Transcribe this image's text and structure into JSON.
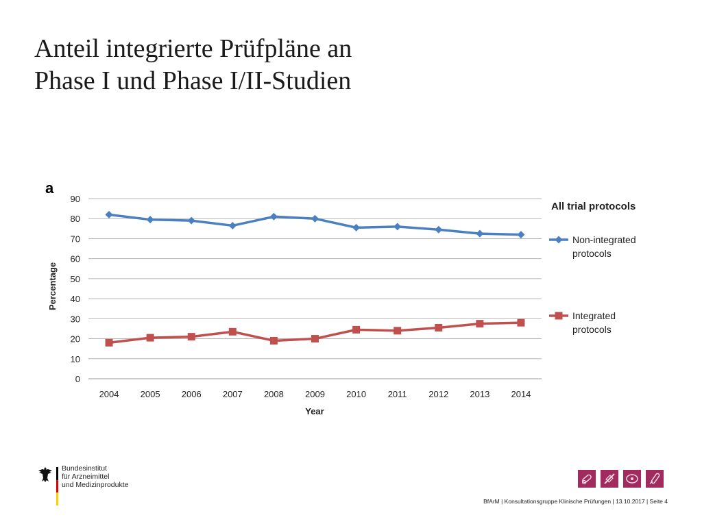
{
  "slide": {
    "title_line1": "Anteil integrierte Prüfpläne an",
    "title_line2": "Phase I und Phase I/II-Studien"
  },
  "chart_data": {
    "type": "line",
    "panel_label": "a",
    "legend_title": "All trial protocols",
    "xlabel": "Year",
    "ylabel": "Percentage",
    "ylim": [
      0,
      90
    ],
    "yticks": [
      0,
      10,
      20,
      30,
      40,
      50,
      60,
      70,
      80,
      90
    ],
    "grid": true,
    "legend_position": "right",
    "categories": [
      "2004",
      "2005",
      "2006",
      "2007",
      "2008",
      "2009",
      "2010",
      "2011",
      "2012",
      "2013",
      "2014"
    ],
    "series": [
      {
        "name_line1": "Non-integrated",
        "name_line2": "protocols",
        "color": "#4a7fc1",
        "marker": "diamond",
        "values": [
          82,
          79.5,
          79,
          76.5,
          81,
          80,
          75.5,
          76,
          74.5,
          72.5,
          72
        ]
      },
      {
        "name_line1": "Integrated",
        "name_line2": "protocols",
        "color": "#c0504d",
        "marker": "square",
        "values": [
          18,
          20.5,
          21,
          23.5,
          19,
          20,
          24.5,
          24,
          25.5,
          27.5,
          28
        ]
      }
    ]
  },
  "footer": {
    "institute_line1": "Bundesinstitut",
    "institute_line2": "für Arzneimittel",
    "institute_line3": "und Medizinprodukte",
    "text": "BfArM | Konsultationsgruppe Klinische Prüfungen | 13.10.2017 | Seite 4",
    "flag_colors": [
      "#000000",
      "#dd0000",
      "#ffce00"
    ],
    "icon_color": "#a12a5e",
    "icons": [
      "pill-icon",
      "syringe-icon",
      "bandage-icon",
      "test-tube-icon"
    ]
  }
}
